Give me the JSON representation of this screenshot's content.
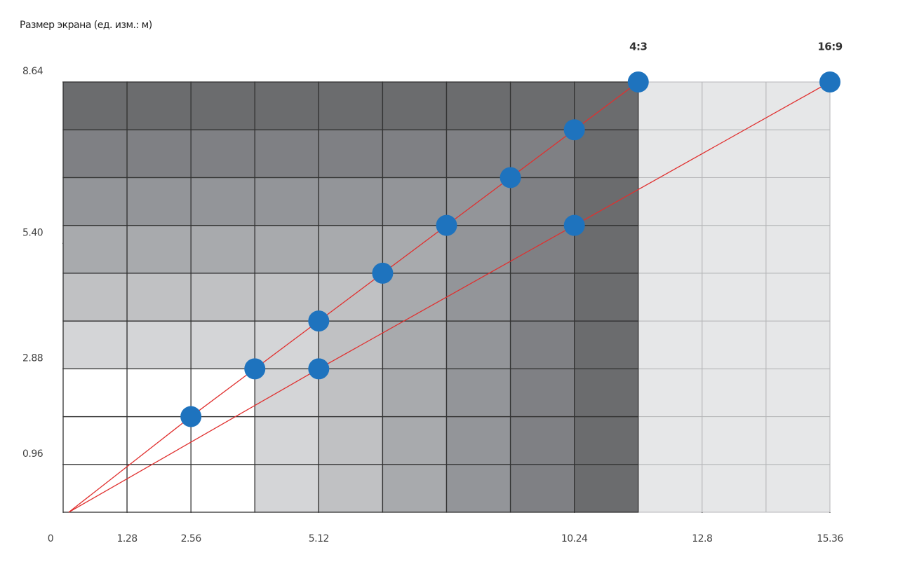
{
  "chart_data": {
    "type": "line",
    "title": "Размер экрана (ед. изм.: м)",
    "series": [
      {
        "name": "4:3",
        "color": "#1e73be",
        "line_color": "#e0302f",
        "x": [
          2.56,
          3.84,
          5.12,
          6.4,
          7.68,
          8.96,
          10.24,
          11.52
        ],
        "values": [
          1.92,
          2.88,
          3.84,
          4.8,
          5.76,
          6.72,
          7.68,
          8.64
        ]
      },
      {
        "name": "16:9",
        "color": "#1e73be",
        "line_color": "#e0302f",
        "x": [
          5.12,
          10.24,
          15.36
        ],
        "values": [
          2.88,
          5.76,
          8.64
        ]
      }
    ],
    "xlim": [
      0,
      15.36
    ],
    "xticks": [
      0,
      1.28,
      2.56,
      5.12,
      10.24,
      12.8,
      15.36
    ],
    "ylim": [
      0,
      8.64
    ],
    "yticks": [
      0.96,
      2.88,
      {
        "value": 5.4,
        "label": "5.40"
      },
      8.64
    ],
    "grid": true
  }
}
